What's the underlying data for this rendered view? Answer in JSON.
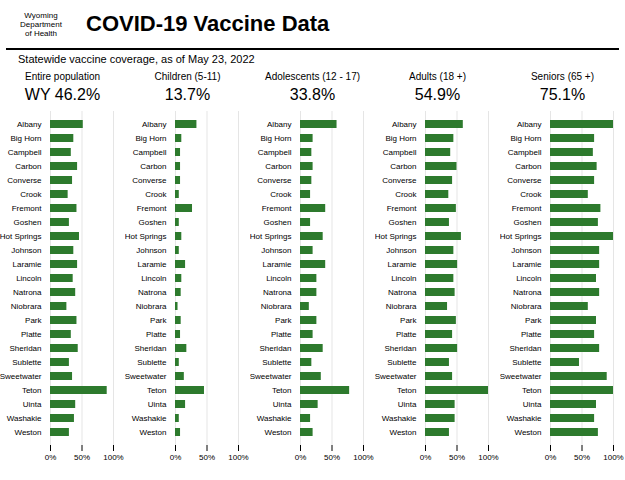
{
  "title": "COVID-19 Vaccine Data",
  "subtitle": "Statewide vaccine coverage, as of  May 23, 2022",
  "annotations": [
    "Wyoming",
    "Department",
    "of Health"
  ],
  "chart_data": [
    {
      "type": "bar",
      "orientation": "horizontal",
      "title": "Entire population",
      "subtitle": "WY 46.2%",
      "categories": [
        "Albany",
        "Big Horn",
        "Campbell",
        "Carbon",
        "Converse",
        "Crook",
        "Fremont",
        "Goshen",
        "Hot Springs",
        "Johnson",
        "Laramie",
        "Lincoln",
        "Natrona",
        "Niobrara",
        "Park",
        "Platte",
        "Sheridan",
        "Sublette",
        "Sweetwater",
        "Teton",
        "Uinta",
        "Washakie",
        "Weston"
      ],
      "values": [
        52,
        37,
        33,
        43,
        35,
        28,
        42,
        30,
        46,
        37,
        43,
        36,
        40,
        26,
        42,
        33,
        44,
        30,
        35,
        90,
        40,
        38,
        30
      ],
      "color": "#2d7a2d",
      "xlim": [
        0,
        100
      ],
      "xticks": [
        {
          "value": 0,
          "label": "0%"
        },
        {
          "value": 50,
          "label": "50%"
        },
        {
          "value": 100,
          "label": "100%"
        }
      ],
      "grid": true
    },
    {
      "type": "bar",
      "orientation": "horizontal",
      "title": "Children (5-11)",
      "subtitle": "13.7%",
      "categories": [
        "Albany",
        "Big Horn",
        "Campbell",
        "Carbon",
        "Converse",
        "Crook",
        "Fremont",
        "Goshen",
        "Hot Springs",
        "Johnson",
        "Laramie",
        "Lincoln",
        "Natrona",
        "Niobrara",
        "Park",
        "Platte",
        "Sheridan",
        "Sublette",
        "Sweetwater",
        "Teton",
        "Uinta",
        "Washakie",
        "Weston"
      ],
      "values": [
        34,
        10,
        8,
        8,
        8,
        6,
        27,
        6,
        10,
        6,
        16,
        10,
        9,
        4,
        9,
        8,
        18,
        6,
        14,
        46,
        16,
        6,
        8
      ],
      "color": "#2d7a2d",
      "xlim": [
        0,
        100
      ],
      "xticks": [
        {
          "value": 0,
          "label": "0%"
        },
        {
          "value": 50,
          "label": "50%"
        },
        {
          "value": 100,
          "label": "100%"
        }
      ],
      "grid": true
    },
    {
      "type": "bar",
      "orientation": "horizontal",
      "title": "Adolescents (12 - 17)",
      "subtitle": "33.8%",
      "categories": [
        "Albany",
        "Big Horn",
        "Campbell",
        "Carbon",
        "Converse",
        "Crook",
        "Fremont",
        "Goshen",
        "Hot Springs",
        "Johnson",
        "Laramie",
        "Lincoln",
        "Natrona",
        "Niobrara",
        "Park",
        "Platte",
        "Sheridan",
        "Sublette",
        "Sweetwater",
        "Teton",
        "Uinta",
        "Washakie",
        "Weston"
      ],
      "values": [
        58,
        20,
        18,
        20,
        18,
        16,
        40,
        16,
        36,
        20,
        40,
        26,
        26,
        14,
        26,
        20,
        36,
        18,
        33,
        78,
        28,
        16,
        20
      ],
      "color": "#2d7a2d",
      "xlim": [
        0,
        100
      ],
      "xticks": [
        {
          "value": 0,
          "label": "0%"
        },
        {
          "value": 50,
          "label": "50%"
        },
        {
          "value": 100,
          "label": "100%"
        }
      ],
      "grid": true
    },
    {
      "type": "bar",
      "orientation": "horizontal",
      "title": "Adults (18 +)",
      "subtitle": "54.9%",
      "categories": [
        "Albany",
        "Big Horn",
        "Campbell",
        "Carbon",
        "Converse",
        "Crook",
        "Fremont",
        "Goshen",
        "Hot Springs",
        "Johnson",
        "Laramie",
        "Lincoln",
        "Natrona",
        "Niobrara",
        "Park",
        "Platte",
        "Sheridan",
        "Sublette",
        "Sweetwater",
        "Teton",
        "Uinta",
        "Washakie",
        "Weston"
      ],
      "values": [
        60,
        45,
        40,
        50,
        43,
        37,
        49,
        38,
        57,
        45,
        51,
        45,
        47,
        35,
        49,
        43,
        51,
        38,
        43,
        100,
        47,
        47,
        38
      ],
      "color": "#2d7a2d",
      "xlim": [
        0,
        100
      ],
      "xticks": [
        {
          "value": 0,
          "label": "0%"
        },
        {
          "value": 50,
          "label": "50%"
        },
        {
          "value": 100,
          "label": "100%"
        }
      ],
      "grid": true
    },
    {
      "type": "bar",
      "orientation": "horizontal",
      "title": "Seniors (65 +)",
      "subtitle": "75.1%",
      "categories": [
        "Albany",
        "Big Horn",
        "Campbell",
        "Carbon",
        "Converse",
        "Crook",
        "Fremont",
        "Goshen",
        "Hot Springs",
        "Johnson",
        "Laramie",
        "Lincoln",
        "Natrona",
        "Niobrara",
        "Park",
        "Platte",
        "Sheridan",
        "Sublette",
        "Sweetwater",
        "Teton",
        "Uinta",
        "Washakie",
        "Weston"
      ],
      "values": [
        100,
        70,
        68,
        74,
        70,
        60,
        80,
        76,
        100,
        78,
        78,
        73,
        78,
        60,
        73,
        70,
        78,
        46,
        90,
        100,
        73,
        70,
        76
      ],
      "color": "#2d7a2d",
      "xlim": [
        0,
        100
      ],
      "xticks": [
        {
          "value": 0,
          "label": "0%"
        },
        {
          "value": 50,
          "label": "50%"
        },
        {
          "value": 100,
          "label": "100%"
        }
      ],
      "grid": true
    }
  ]
}
